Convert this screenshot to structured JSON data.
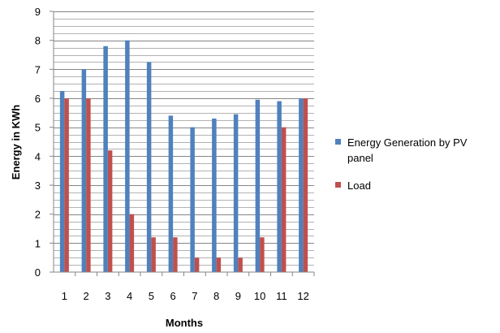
{
  "chart_data": {
    "type": "bar",
    "title": "",
    "xlabel": "Months",
    "ylabel": "Energy in KWh",
    "categories": [
      "1",
      "2",
      "3",
      "4",
      "5",
      "6",
      "7",
      "8",
      "9",
      "10",
      "11",
      "12"
    ],
    "ylim": [
      0,
      9
    ],
    "yticks": [
      "0",
      "1",
      "2",
      "3",
      "4",
      "5",
      "6",
      "7",
      "8",
      "9"
    ],
    "minor_gridlines": true,
    "legend_position": "right",
    "series": [
      {
        "name": "Energy Generation by PV panel",
        "color": "#4f81bd",
        "values": [
          6.25,
          7.0,
          7.8,
          8.0,
          7.25,
          5.4,
          5.0,
          5.3,
          5.45,
          5.95,
          5.9,
          6.0
        ]
      },
      {
        "name": "Load",
        "color": "#c0504d",
        "values": [
          6.0,
          6.0,
          4.2,
          2.0,
          1.2,
          1.2,
          0.5,
          0.5,
          0.5,
          1.2,
          5.0,
          6.0
        ]
      }
    ],
    "legend": {
      "entry1_line1": "Energy Generation by PV",
      "entry1_line2": "panel",
      "entry2": "Load"
    }
  }
}
